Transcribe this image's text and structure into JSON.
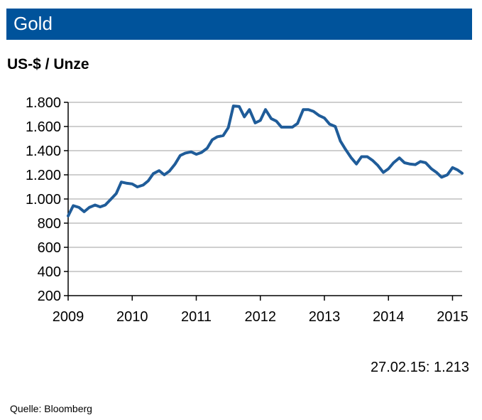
{
  "header": {
    "title": "Gold"
  },
  "unit_label": "US-$ / Unze",
  "annotation": "27.02.15:  1.213",
  "source": "Quelle:  Bloomberg",
  "colors": {
    "title_bar": "#00539b",
    "line": "#1f5c99",
    "grid": "#bfbfbf"
  },
  "chart_data": {
    "type": "line",
    "title": "Gold",
    "ylabel": "US-$ / Unze",
    "xlabel": "",
    "ylim": [
      200,
      1800
    ],
    "xlim": [
      2009.0,
      2015.15
    ],
    "y_ticks": [
      200,
      400,
      600,
      800,
      1000,
      1200,
      1400,
      1600,
      1800
    ],
    "y_tick_labels": [
      "200",
      "400",
      "600",
      "800",
      "1.000",
      "1.200",
      "1.400",
      "1.600",
      "1.800"
    ],
    "x_ticks": [
      2009,
      2010,
      2011,
      2012,
      2013,
      2014,
      2015
    ],
    "x_tick_labels": [
      "2009",
      "2010",
      "2011",
      "2012",
      "2013",
      "2014",
      "2015"
    ],
    "grid": "horizontal",
    "series": [
      {
        "x": [
          2009.0,
          2009.08,
          2009.17,
          2009.25,
          2009.33,
          2009.42,
          2009.5,
          2009.58,
          2009.67,
          2009.75,
          2009.83,
          2009.92,
          2010.0,
          2010.08,
          2010.17,
          2010.25,
          2010.33,
          2010.42,
          2010.5,
          2010.58,
          2010.67,
          2010.75,
          2010.83,
          2010.92,
          2011.0,
          2011.08,
          2011.17,
          2011.25,
          2011.33,
          2011.42,
          2011.5,
          2011.58,
          2011.67,
          2011.75,
          2011.83,
          2011.92,
          2012.0,
          2012.08,
          2012.17,
          2012.25,
          2012.33,
          2012.42,
          2012.5,
          2012.58,
          2012.67,
          2012.75,
          2012.83,
          2012.92,
          2013.0,
          2013.08,
          2013.17,
          2013.25,
          2013.33,
          2013.42,
          2013.5,
          2013.58,
          2013.67,
          2013.75,
          2013.83,
          2013.92,
          2014.0,
          2014.08,
          2014.17,
          2014.25,
          2014.33,
          2014.42,
          2014.5,
          2014.58,
          2014.67,
          2014.75,
          2014.83,
          2014.92,
          2015.0,
          2015.08,
          2015.15
        ],
        "values": [
          860,
          945,
          930,
          895,
          930,
          950,
          935,
          950,
          1000,
          1045,
          1140,
          1130,
          1125,
          1100,
          1115,
          1150,
          1210,
          1235,
          1200,
          1230,
          1290,
          1360,
          1380,
          1390,
          1370,
          1385,
          1420,
          1490,
          1515,
          1525,
          1590,
          1770,
          1765,
          1680,
          1740,
          1630,
          1650,
          1740,
          1665,
          1645,
          1595,
          1595,
          1595,
          1625,
          1740,
          1740,
          1725,
          1690,
          1670,
          1620,
          1600,
          1480,
          1410,
          1340,
          1290,
          1350,
          1350,
          1320,
          1280,
          1220,
          1250,
          1300,
          1340,
          1300,
          1290,
          1285,
          1310,
          1300,
          1250,
          1220,
          1180,
          1200,
          1260,
          1240,
          1213
        ]
      }
    ]
  }
}
